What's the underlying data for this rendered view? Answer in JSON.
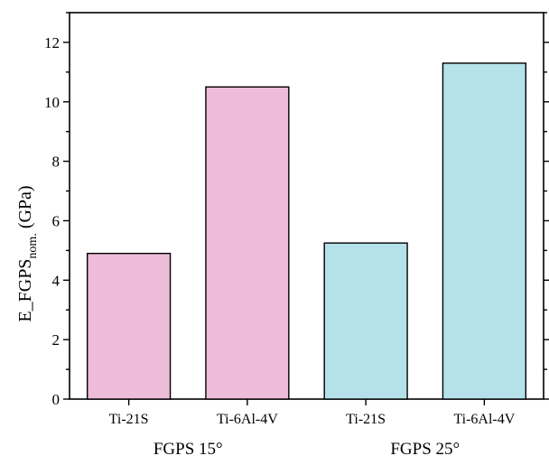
{
  "chart_data": {
    "type": "bar",
    "title": "",
    "ylabel": "E_FGPS",
    "ylabel_subscript": "nom.",
    "ylabel_unit": "(GPa)",
    "xlabel": "",
    "ylim": [
      0,
      13
    ],
    "yticks": [
      0,
      2,
      4,
      6,
      8,
      10,
      12
    ],
    "grid": false,
    "legend": "none",
    "bar_outline_color": "#000000",
    "categories": [
      "Ti-21S",
      "Ti-6Al-4V",
      "Ti-21S",
      "Ti-6Al-4V"
    ],
    "values": [
      4.9,
      10.5,
      5.25,
      11.3
    ],
    "bar_colors": [
      "#ecbcd9",
      "#ecbcd9",
      "#b5e1e9",
      "#b5e1e9"
    ],
    "groups": [
      {
        "label": "FGPS 15°",
        "members": [
          0,
          1
        ]
      },
      {
        "label": "FGPS 25°",
        "members": [
          2,
          3
        ]
      }
    ]
  }
}
